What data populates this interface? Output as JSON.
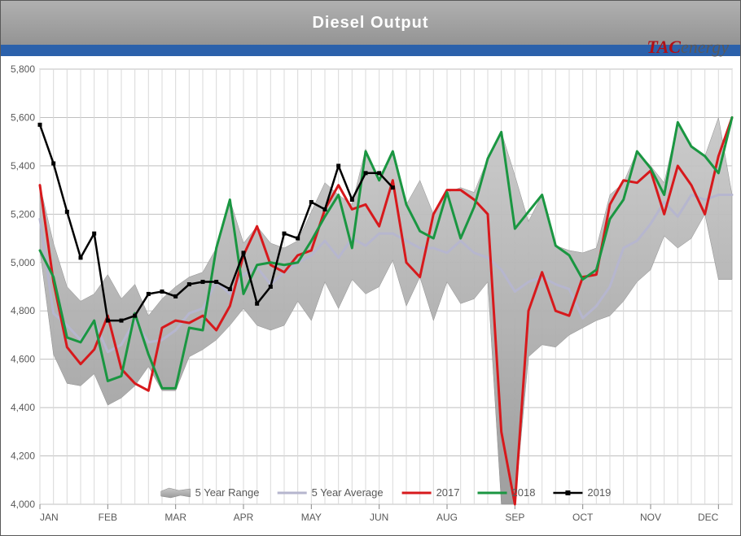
{
  "title": "Diesel  Output",
  "logo": {
    "left": "TAC",
    "right": "energy"
  },
  "chart": {
    "type": "line-area",
    "ylim": [
      4000,
      5800
    ],
    "ytick_step": 200,
    "yticks": [
      4000,
      4200,
      4400,
      4600,
      4800,
      5000,
      5200,
      5400,
      5600,
      5800
    ],
    "x_labels": [
      "JAN",
      "FEB",
      "MAR",
      "APR",
      "MAY",
      "JUN",
      "AUG",
      "SEP",
      "OCT",
      "NOV",
      "DEC"
    ],
    "x_major_positions": [
      0,
      5,
      10,
      15,
      20,
      25,
      30,
      35,
      40,
      45,
      50
    ],
    "n_points": 52,
    "background_color": "#ffffff",
    "grid_color": "#bfbfbf",
    "title_bar_gradient": [
      "#b0b0b0",
      "#949494"
    ],
    "blue_bar_color": "#2b61ab",
    "plot_border_color": "#868686",
    "series": {
      "range_high": {
        "color": "#a6a6a6",
        "data": [
          5320,
          5080,
          4900,
          4840,
          4870,
          4950,
          4850,
          4910,
          4780,
          4850,
          4900,
          4940,
          4960,
          5060,
          5260,
          5080,
          5150,
          5080,
          5060,
          5090,
          5210,
          5330,
          5280,
          5240,
          5470,
          5340,
          5460,
          5240,
          5340,
          5200,
          5290,
          5310,
          5290,
          5430,
          5540,
          5360,
          5170,
          5280,
          5070,
          5050,
          5040,
          5060,
          5280,
          5330,
          5460,
          5400,
          5330,
          5580,
          5480,
          5440,
          5600,
          5280
        ]
      },
      "range_low": {
        "color": "#a6a6a6",
        "data": [
          5050,
          4620,
          4500,
          4490,
          4540,
          4410,
          4440,
          4490,
          4570,
          4470,
          4470,
          4610,
          4640,
          4680,
          4740,
          4810,
          4740,
          4720,
          4740,
          4840,
          4760,
          4920,
          4810,
          4930,
          4870,
          4900,
          5010,
          4820,
          4940,
          4760,
          4920,
          4830,
          4850,
          4920,
          4000,
          4000,
          4610,
          4660,
          4650,
          4700,
          4730,
          4760,
          4780,
          4840,
          4920,
          4970,
          5110,
          5060,
          5100,
          5200,
          4930,
          4930
        ]
      },
      "avg": {
        "label": "5 Year Average",
        "color": "#b6b6ce",
        "width": 3,
        "data": [
          5180,
          4790,
          4740,
          4680,
          4760,
          4630,
          4660,
          4760,
          4670,
          4680,
          4720,
          4790,
          4810,
          4920,
          4870,
          4950,
          4980,
          4910,
          4960,
          5000,
          5030,
          5090,
          5020,
          5100,
          5070,
          5120,
          5120,
          5090,
          5060,
          5060,
          5040,
          5090,
          5040,
          5020,
          4970,
          4880,
          4920,
          4940,
          4910,
          4890,
          4770,
          4820,
          4900,
          5060,
          5090,
          5160,
          5250,
          5190,
          5280,
          5260,
          5280,
          5280
        ]
      },
      "y2017": {
        "label": "2017",
        "color": "#d7191c",
        "width": 3,
        "data": [
          5320,
          4920,
          4650,
          4580,
          4640,
          4780,
          4560,
          4500,
          4470,
          4730,
          4760,
          4750,
          4780,
          4720,
          4820,
          5030,
          5150,
          4990,
          4960,
          5030,
          5050,
          5220,
          5320,
          5220,
          5240,
          5150,
          5340,
          5000,
          4940,
          5200,
          5300,
          5300,
          5260,
          5200,
          4300,
          4000,
          4800,
          4960,
          4800,
          4780,
          4940,
          4950,
          5240,
          5340,
          5330,
          5380,
          5200,
          5400,
          5320,
          5200,
          5440,
          5600
        ]
      },
      "y2018": {
        "label": "2018",
        "color": "#1a9641",
        "width": 3,
        "data": [
          5050,
          4940,
          4690,
          4670,
          4760,
          4510,
          4530,
          4790,
          4620,
          4480,
          4480,
          4730,
          4720,
          5060,
          5260,
          4870,
          4990,
          5000,
          4990,
          5000,
          5090,
          5190,
          5280,
          5060,
          5460,
          5340,
          5460,
          5240,
          5130,
          5100,
          5290,
          5100,
          5230,
          5430,
          5540,
          5140,
          5210,
          5280,
          5070,
          5030,
          4930,
          4970,
          5180,
          5260,
          5460,
          5390,
          5280,
          5580,
          5480,
          5440,
          5370,
          5600
        ]
      },
      "y2019": {
        "label": "2019",
        "color": "#000000",
        "width": 2.5,
        "marker": "square",
        "marker_size": 5,
        "data": [
          5570,
          5410,
          5210,
          5020,
          5120,
          4760,
          4760,
          4780,
          4870,
          4880,
          4860,
          4910,
          4920,
          4920,
          4890,
          5040,
          4830,
          4900,
          5120,
          5100,
          5250,
          5220,
          5400,
          5260,
          5370,
          5370,
          5310
        ]
      }
    },
    "legend": {
      "items": [
        {
          "label": "5 Year Range",
          "kind": "area",
          "color": "#a6a6a6"
        },
        {
          "label": "5 Year Average",
          "kind": "line",
          "color": "#b6b6ce"
        },
        {
          "label": "2017",
          "kind": "line",
          "color": "#d7191c"
        },
        {
          "label": "2018",
          "kind": "line",
          "color": "#1a9641"
        },
        {
          "label": "2019",
          "kind": "line-marker",
          "color": "#000000"
        }
      ],
      "fontsize": 13,
      "text_color": "#595959"
    }
  }
}
